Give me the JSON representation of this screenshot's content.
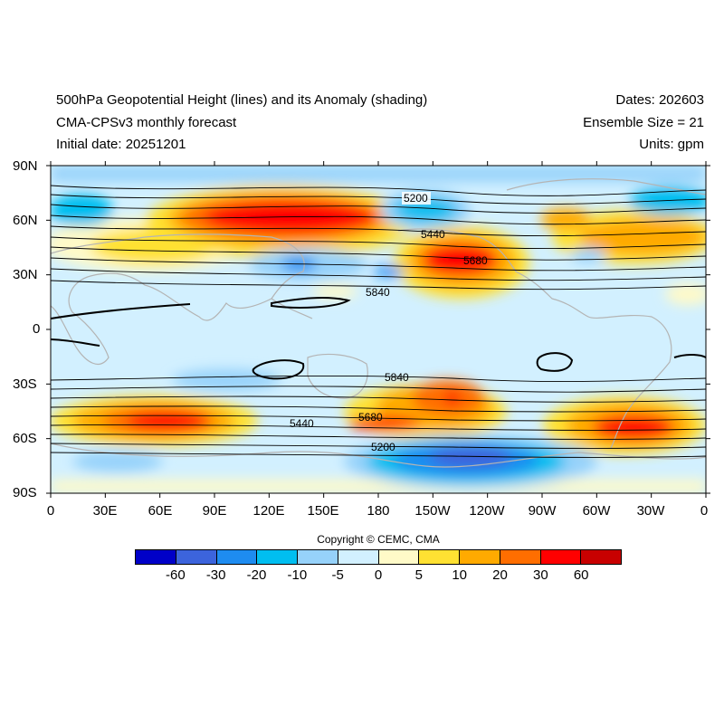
{
  "header": {
    "title": "500hPa Geopotential Height (lines) and its Anomaly (shading)",
    "model": "CMA-CPSv3 monthly forecast",
    "initial_date": "Initial date: 20251201",
    "dates": "Dates: 202603",
    "ensemble": "Ensemble Size = 21",
    "units": "Units: gpm"
  },
  "axes": {
    "lat_labels": [
      "90N",
      "60N",
      "30N",
      "0",
      "30S",
      "60S",
      "90S"
    ],
    "lon_labels": [
      "0",
      "30E",
      "60E",
      "90E",
      "120E",
      "150E",
      "180",
      "150W",
      "120W",
      "90W",
      "60W",
      "30W",
      "0"
    ]
  },
  "contour_labels": [
    "5200",
    "5440",
    "5680",
    "5840",
    "5840",
    "5680",
    "5440",
    "5200"
  ],
  "copyright": "Copyright © CEMC, CMA",
  "colorbar": {
    "colors": [
      "#0000c8",
      "#3c64dc",
      "#1e8cf0",
      "#00bef0",
      "#96d2fa",
      "#d2f0ff",
      "#fffac8",
      "#ffe132",
      "#ffaa00",
      "#ff6e00",
      "#ff0000",
      "#c80000"
    ],
    "labels": [
      "-60",
      "-30",
      "-20",
      "-10",
      "-5",
      "0",
      "5",
      "10",
      "20",
      "30",
      "60"
    ]
  }
}
